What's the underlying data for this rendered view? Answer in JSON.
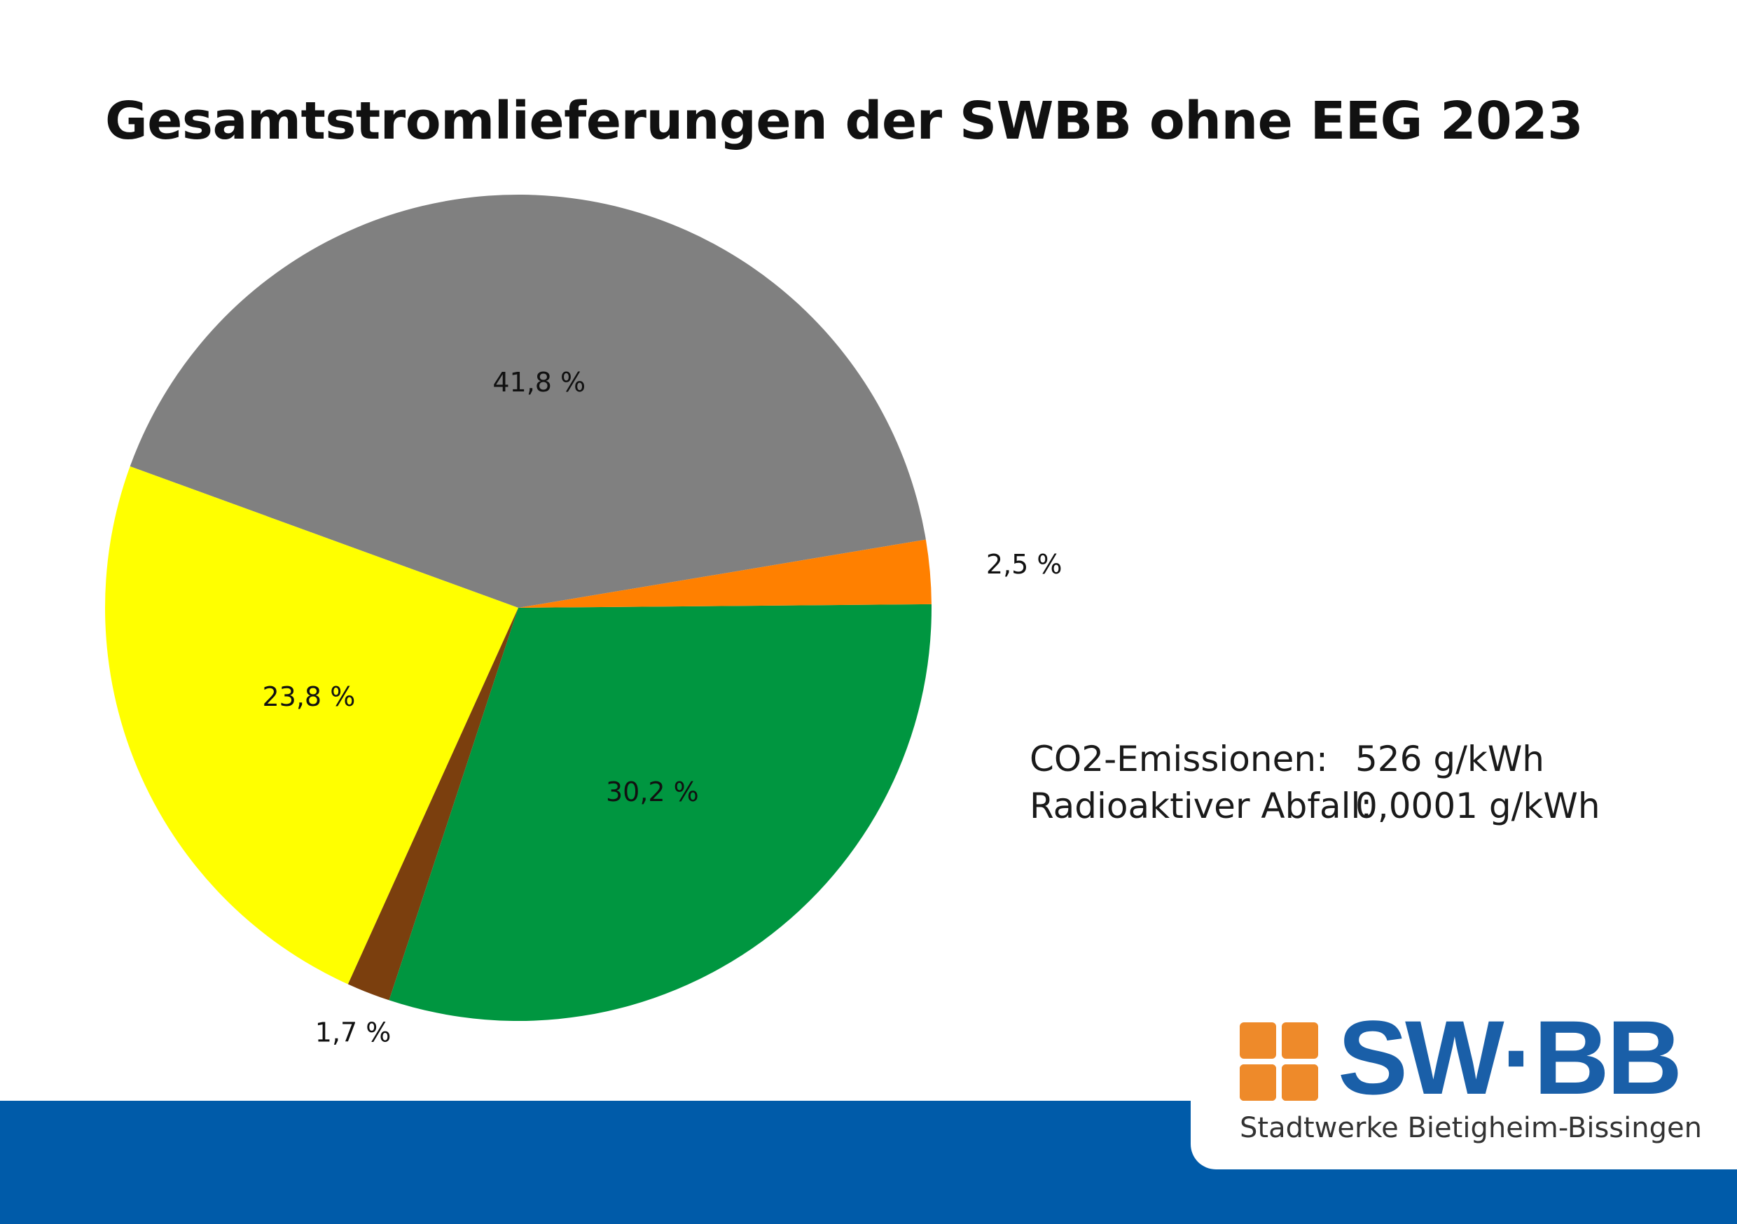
{
  "chart_data": {
    "type": "pie",
    "title": "Gesamtstromlieferungen der SWBB ohne EEG 2023",
    "slices": [
      {
        "label": "41,8 %",
        "value": 41.8,
        "color": "#808080"
      },
      {
        "label": "23,8 %",
        "value": 23.8,
        "color": "#FFFF00"
      },
      {
        "label": "1,7 %",
        "value": 1.7,
        "color": "#7B3F0E"
      },
      {
        "label": "30,2 %",
        "value": 30.2,
        "color": "#009640"
      },
      {
        "label": "2,5 %",
        "value": 2.5,
        "color": "#FF8000"
      }
    ]
  },
  "info": {
    "co2_label": "CO2-Emissionen:",
    "co2_value": "526 g/kWh",
    "waste_label": "Radioaktiver Abfall:",
    "waste_value": "0,0001 g/kWh"
  },
  "logo": {
    "wordmark": "SW·BB",
    "tagline": "Stadtwerke Bietigheim-Bissingen",
    "color_primary": "#1a5fa8",
    "color_squares": "#EE8A2A",
    "band_color": "#005BA9"
  }
}
